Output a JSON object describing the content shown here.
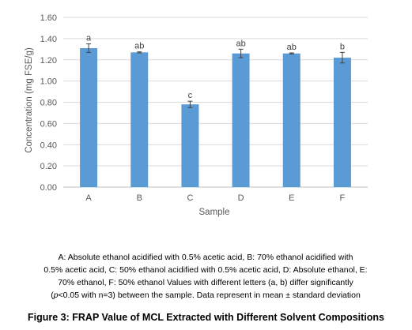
{
  "chart_data": {
    "type": "bar",
    "categories": [
      "A",
      "B",
      "C",
      "D",
      "E",
      "F"
    ],
    "values": [
      1.31,
      1.27,
      0.78,
      1.26,
      1.26,
      1.22
    ],
    "errors": [
      0.04,
      0.005,
      0.03,
      0.04,
      0.005,
      0.05
    ],
    "significance_letters": [
      "a",
      "ab",
      "c",
      "ab",
      "ab",
      "b"
    ],
    "xlabel": "Sample",
    "ylabel": "Concentration (mg FSE/g)",
    "ylim": [
      0,
      1.6
    ],
    "yticks": [
      "0.00",
      "0.20",
      "0.40",
      "0.60",
      "0.80",
      "1.00",
      "1.20",
      "1.40",
      "1.60"
    ],
    "grid": true,
    "bar_color": "#5b9bd5",
    "grid_color": "#d9d9d9"
  },
  "caption": {
    "line1": "A: Absolute ethanol acidified with 0.5% acetic acid, B: 70% ethanol acidified with",
    "line2": "0.5% acetic acid, C: 50% ethanol acidified with 0.5% acetic acid, D: Absolute ethanol, E:",
    "line3": "70% ethanol, F: 50% ethanol Values with different letters (a, b) differ significantly",
    "line4_open": "(",
    "line4_italic": "p",
    "line4_rest": "<0.05 with n=3) between the sample. Data represent in mean ± standard deviation"
  },
  "figure_title": "Figure 3: FRAP Value of MCL Extracted with Different Solvent Compositions"
}
